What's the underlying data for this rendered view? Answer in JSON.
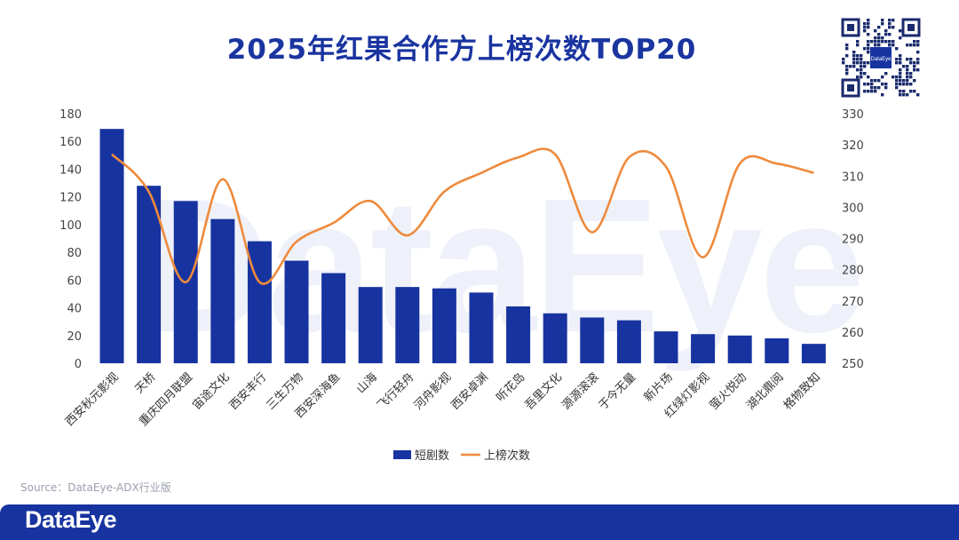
{
  "title": "2025年红果合作方上榜次数TOP20",
  "watermark": "DataEye",
  "source": "Source：DataEye-ADX行业版",
  "footer_brand": "DataEye",
  "qr_label": "DataEye",
  "colors": {
    "bar": "#1733a0",
    "line": "#ee8a3c",
    "title": "#1a34a0",
    "footer": "#1733a0"
  },
  "chart_data": {
    "type": "bar",
    "categories": [
      "西安秋元影视",
      "天桥",
      "重庆四月联盟",
      "宙途文化",
      "西安丰行",
      "三生万物",
      "西安深海鱼",
      "山海",
      "飞行轻舟",
      "河舟影视",
      "西安卓渊",
      "听花岛",
      "吾里文化",
      "源源滚滚",
      "于今无量",
      "新片场",
      "红绿灯影视",
      "萤火悦动",
      "湖北鼎阅",
      "格物致知"
    ],
    "series": [
      {
        "name": "短剧数",
        "type": "bar",
        "axis": "left",
        "values": [
          169,
          128,
          117,
          104,
          88,
          74,
          65,
          55,
          55,
          54,
          51,
          41,
          36,
          33,
          31,
          23,
          21,
          20,
          18,
          14
        ]
      },
      {
        "name": "上榜次数",
        "type": "line",
        "axis": "right",
        "values": [
          317,
          305,
          276,
          309,
          276,
          289,
          295,
          302,
          291,
          305,
          311,
          316,
          317,
          292,
          316,
          313,
          284,
          314,
          314,
          311
        ]
      }
    ],
    "y_left": {
      "min": 0,
      "max": 180,
      "ticks": [
        0,
        20,
        40,
        60,
        80,
        100,
        120,
        140,
        160,
        180
      ]
    },
    "y_right": {
      "min": 250,
      "max": 330,
      "ticks": [
        250,
        260,
        270,
        280,
        290,
        300,
        310,
        320,
        330
      ]
    },
    "legend_position": "bottom-center",
    "grid": false
  }
}
